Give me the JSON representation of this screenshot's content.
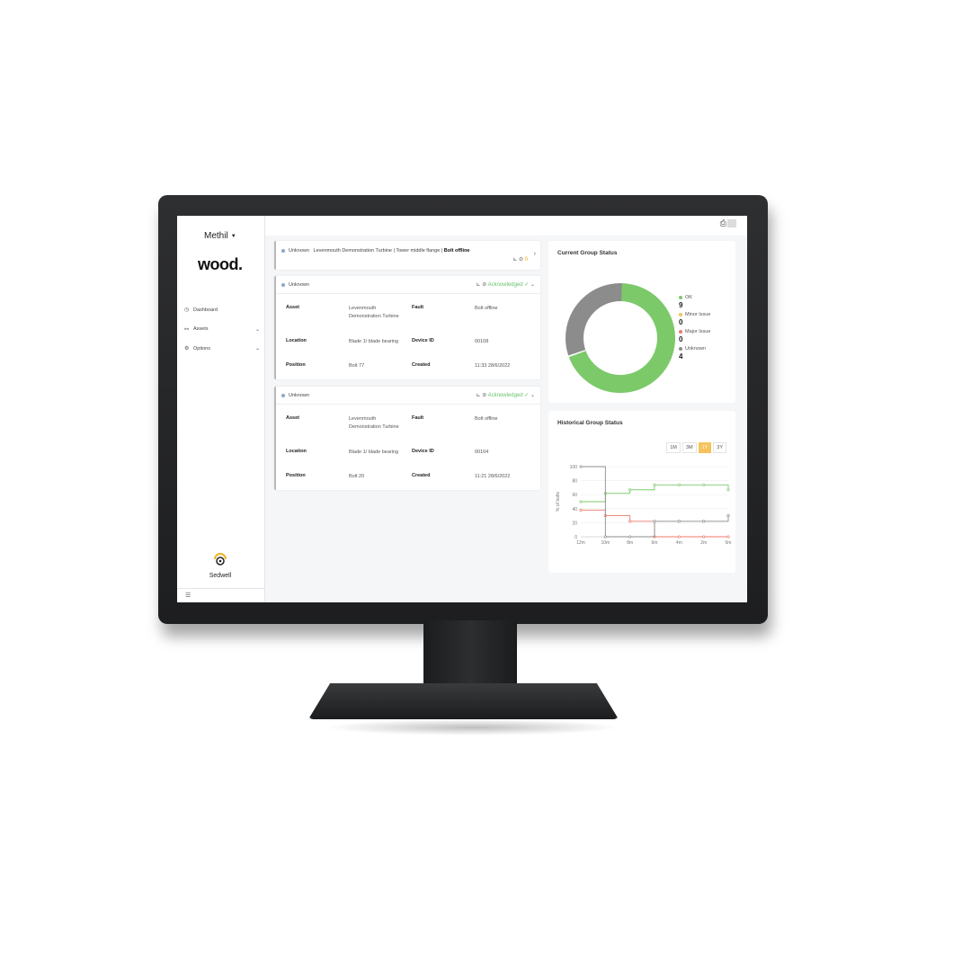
{
  "colors": {
    "ok": "#7cc96a",
    "minor": "#f6c25a",
    "major": "#ef7a6a",
    "unknown": "#8c8c8c",
    "accent": "#f6c25a"
  },
  "sidebar": {
    "org": "Methil",
    "brand": "wood.",
    "items": [
      {
        "label": "Dashboard",
        "icon": "dashboard-icon"
      },
      {
        "label": "Assets",
        "icon": "assets-icon"
      },
      {
        "label": "Options",
        "icon": "gear-icon"
      }
    ],
    "sedwell_label": "Sedwell"
  },
  "alerts": {
    "collapsed": {
      "status": "Unknown",
      "summary": "Levenmouth Demonstration Turbine | Tower middle flange |",
      "fault": "Bolt offline",
      "count": "0"
    },
    "cards": [
      {
        "status": "Unknown",
        "ack": "Acknowledged",
        "labels": {
          "asset": "Asset",
          "fault": "Fault",
          "location": "Location",
          "device": "Device ID",
          "position": "Position",
          "created": "Created"
        },
        "asset": "Levenmouth Demonstration Turbine",
        "fault": "Bolt offline",
        "location": "Blade 1/ blade bearing",
        "device": "00108",
        "position": "Bolt 77",
        "created": "11:33 28/6/2022"
      },
      {
        "status": "Unknown",
        "ack": "Acknowledged",
        "labels": {
          "asset": "Asset",
          "fault": "Fault",
          "location": "Location",
          "device": "Device ID",
          "position": "Position",
          "created": "Created"
        },
        "asset": "Levenmouth Demonstration Turbine",
        "fault": "Bolt offline",
        "location": "Blade 1/ blade bearing",
        "device": "00104",
        "position": "Bolt 20",
        "created": "11:21 28/6/2022"
      }
    ]
  },
  "current_status": {
    "title": "Current Group Status",
    "legend": [
      {
        "label": "OK",
        "count": "9"
      },
      {
        "label": "Minor Issue",
        "count": "0"
      },
      {
        "label": "Major Issue",
        "count": "0"
      },
      {
        "label": "Unknown",
        "count": "4"
      }
    ]
  },
  "historical_status": {
    "title": "Historical Group Status",
    "ranges": [
      "1M",
      "3M",
      "1Y",
      "3Y"
    ],
    "active_range": "1Y"
  },
  "chart_data": [
    {
      "type": "pie",
      "title": "Current Group Status",
      "categories": [
        "OK",
        "Minor Issue",
        "Major Issue",
        "Unknown"
      ],
      "values": [
        9,
        0,
        0,
        4
      ]
    },
    {
      "type": "line",
      "title": "Historical Group Status",
      "ylabel": "% of bolts",
      "ylim": [
        0,
        100
      ],
      "yticks": [
        0,
        20,
        40,
        60,
        80,
        100
      ],
      "x": [
        "12m",
        "10m",
        "8m",
        "6m",
        "4m",
        "2m",
        "0m"
      ],
      "xticks": [
        "12m",
        "10m",
        "8m",
        "6m",
        "4m",
        "2m",
        "0m"
      ],
      "series": [
        {
          "name": "OK",
          "values": [
            50,
            62,
            67,
            74,
            74,
            74,
            67
          ]
        },
        {
          "name": "Major Issue",
          "values": [
            38,
            30,
            22,
            0,
            0,
            0,
            0
          ]
        },
        {
          "name": "Unknown",
          "values": [
            100,
            0,
            0,
            22,
            22,
            22,
            30
          ]
        }
      ]
    }
  ]
}
